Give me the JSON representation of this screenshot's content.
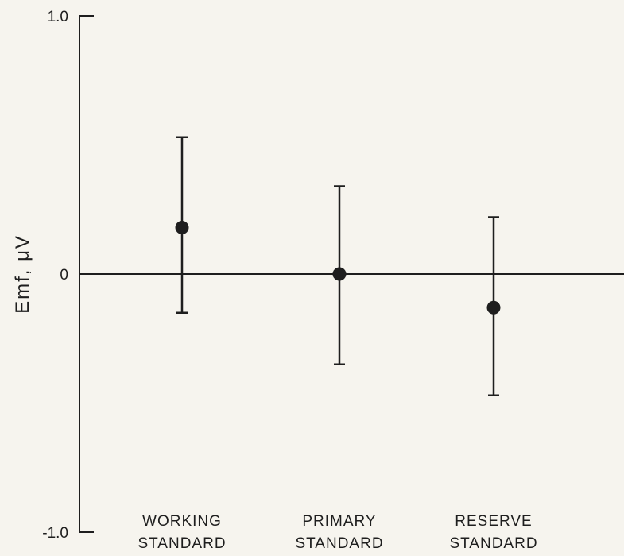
{
  "chart_data": {
    "type": "scatter",
    "title": "",
    "xlabel": "",
    "ylabel": "Emf, μV",
    "ylim": [
      -1.0,
      1.0
    ],
    "yticks": [
      {
        "value": 1.0,
        "label": "1.0"
      },
      {
        "value": 0,
        "label": "0"
      },
      {
        "value": -1.0,
        "label": "-1.0"
      }
    ],
    "categories": [
      [
        "WORKING",
        "STANDARD"
      ],
      [
        "PRIMARY",
        "STANDARD"
      ],
      [
        "RESERVE",
        "STANDARD"
      ]
    ],
    "values": [
      0.18,
      0.0,
      -0.13
    ],
    "error_upper": [
      0.53,
      0.34,
      0.22
    ],
    "error_lower": [
      -0.15,
      -0.35,
      -0.47
    ],
    "zero_line": true,
    "grid": false,
    "colors": {
      "ink": "#1e1e1e",
      "background": "#f6f4ee"
    }
  }
}
